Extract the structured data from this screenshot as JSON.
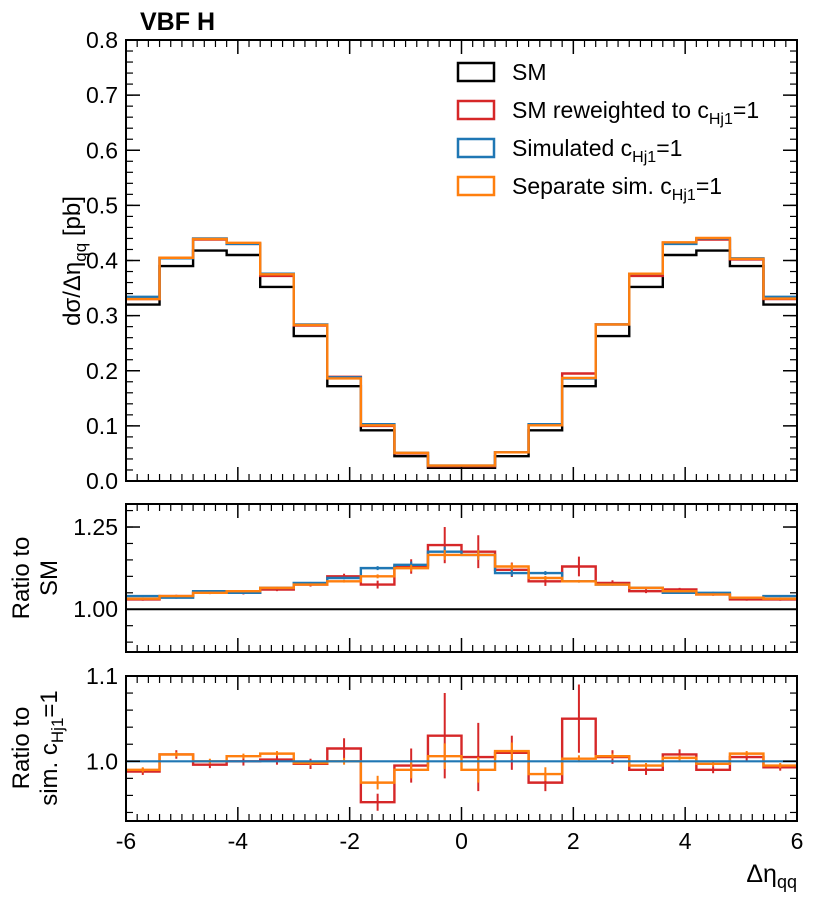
{
  "figure": {
    "title": "VBF H",
    "xlabel_main": "Δη",
    "xlabel_sub": "qq"
  },
  "colors": {
    "sm": "#000000",
    "reweighted": "#d62728",
    "simulated": "#1f77b4",
    "separate": "#ff7f0e"
  },
  "legend": {
    "placement": "top-right",
    "entries": [
      {
        "key": "sm",
        "text": "SM",
        "sub": "",
        "tail": ""
      },
      {
        "key": "reweighted",
        "text": "SM reweighted to c",
        "sub": "Hj1",
        "tail": "=1"
      },
      {
        "key": "simulated",
        "text": "Simulated c",
        "sub": "Hj1",
        "tail": "=1"
      },
      {
        "key": "separate",
        "text": "Separate sim. c",
        "sub": "Hj1",
        "tail": "=1"
      }
    ]
  },
  "panels": {
    "main": {
      "ylabel_pre": "dσ/Δη",
      "ylabel_sub": "qq",
      "ylabel_post": " [pb]",
      "yticks": [
        "0.0",
        "0.1",
        "0.2",
        "0.3",
        "0.4",
        "0.5",
        "0.6",
        "0.7",
        "0.8"
      ]
    },
    "ratio_sm": {
      "ylabel_line1": "Ratio to",
      "ylabel_line2": "SM",
      "yticks": [
        "1.00",
        "1.25"
      ]
    },
    "ratio_sim": {
      "ylabel_line1": "Ratio to",
      "ylabel_line2_pre": "sim. c",
      "ylabel_line2_sub": "Hj1",
      "ylabel_line2_post": "=1",
      "yticks": [
        "1.0",
        "1.1"
      ]
    },
    "xticks": [
      "-6",
      "-4",
      "-2",
      "0",
      "2",
      "4",
      "6"
    ]
  },
  "chart_data": [
    {
      "type": "line",
      "panel": "main",
      "title": "VBF H",
      "xlabel": "Δη_qq",
      "ylabel": "dσ/Δη_qq [pb]",
      "xlim": [
        -6,
        6
      ],
      "ylim": [
        0,
        0.8
      ],
      "bin_edges": [
        -6,
        -5.4,
        -4.8,
        -4.2,
        -3.6,
        -3.0,
        -2.4,
        -1.8,
        -1.2,
        -0.6,
        0,
        0.6,
        1.2,
        1.8,
        2.4,
        3.0,
        3.6,
        4.2,
        4.8,
        5.4,
        6
      ],
      "series": [
        {
          "name": "SM",
          "key": "sm",
          "values": [
            0.32,
            0.39,
            0.418,
            0.41,
            0.352,
            0.263,
            0.172,
            0.092,
            0.045,
            0.024,
            0.024,
            0.045,
            0.092,
            0.172,
            0.263,
            0.352,
            0.41,
            0.418,
            0.39,
            0.32
          ]
        },
        {
          "name": "SM reweighted to c_Hj1=1",
          "key": "reweighted",
          "values": [
            0.33,
            0.405,
            0.438,
            0.43,
            0.372,
            0.282,
            0.189,
            0.1,
            0.05,
            0.027,
            0.027,
            0.052,
            0.101,
            0.195,
            0.284,
            0.372,
            0.432,
            0.438,
            0.402,
            0.33
          ]
        },
        {
          "name": "Simulated c_Hj1=1",
          "key": "simulated",
          "values": [
            0.334,
            0.404,
            0.44,
            0.43,
            0.376,
            0.284,
            0.188,
            0.103,
            0.051,
            0.028,
            0.028,
            0.052,
            0.103,
            0.186,
            0.284,
            0.376,
            0.43,
            0.44,
            0.404,
            0.334
          ]
        },
        {
          "name": "Separate sim. c_Hj1=1",
          "key": "separate",
          "values": [
            0.33,
            0.405,
            0.439,
            0.432,
            0.375,
            0.283,
            0.186,
            0.101,
            0.051,
            0.028,
            0.028,
            0.052,
            0.101,
            0.187,
            0.284,
            0.376,
            0.433,
            0.441,
            0.403,
            0.331
          ]
        }
      ]
    },
    {
      "type": "line",
      "panel": "ratio_sm",
      "xlabel": "Δη_qq",
      "ylabel": "Ratio to SM",
      "xlim": [
        -6,
        6
      ],
      "ylim": [
        0.87,
        1.32
      ],
      "reference": 1.0,
      "bin_edges": [
        -6,
        -5.4,
        -4.8,
        -4.2,
        -3.6,
        -3.0,
        -2.4,
        -1.8,
        -1.2,
        -0.6,
        0,
        0.6,
        1.2,
        1.8,
        2.4,
        3.0,
        3.6,
        4.2,
        4.8,
        5.4,
        6
      ],
      "series": [
        {
          "name": "SM reweighted to c_Hj1=1",
          "key": "reweighted",
          "values": [
            1.03,
            1.04,
            1.05,
            1.05,
            1.06,
            1.075,
            1.1,
            1.075,
            1.13,
            1.195,
            1.175,
            1.12,
            1.085,
            1.13,
            1.08,
            1.055,
            1.06,
            1.045,
            1.03,
            1.03
          ],
          "errors": [
            0.004,
            0.004,
            0.004,
            0.005,
            0.005,
            0.006,
            0.008,
            0.012,
            0.022,
            0.055,
            0.05,
            0.022,
            0.014,
            0.03,
            0.008,
            0.006,
            0.005,
            0.004,
            0.004,
            0.004
          ]
        },
        {
          "name": "Simulated c_Hj1=1",
          "key": "simulated",
          "values": [
            1.04,
            1.035,
            1.055,
            1.05,
            1.065,
            1.08,
            1.095,
            1.125,
            1.135,
            1.175,
            1.165,
            1.11,
            1.11,
            1.085,
            1.075,
            1.065,
            1.05,
            1.05,
            1.035,
            1.04
          ],
          "errors": [
            0.003,
            0.003,
            0.003,
            0.003,
            0.003,
            0.003,
            0.004,
            0.006,
            0.01,
            0.015,
            0.015,
            0.01,
            0.006,
            0.004,
            0.003,
            0.003,
            0.003,
            0.003,
            0.003,
            0.003
          ]
        },
        {
          "name": "Separate sim. c_Hj1=1",
          "key": "separate",
          "values": [
            1.032,
            1.04,
            1.05,
            1.055,
            1.065,
            1.075,
            1.085,
            1.1,
            1.125,
            1.165,
            1.165,
            1.13,
            1.095,
            1.085,
            1.075,
            1.065,
            1.055,
            1.045,
            1.035,
            1.032
          ],
          "errors": [
            0.003,
            0.003,
            0.003,
            0.003,
            0.003,
            0.003,
            0.004,
            0.006,
            0.01,
            0.015,
            0.015,
            0.01,
            0.006,
            0.004,
            0.003,
            0.003,
            0.003,
            0.003,
            0.003,
            0.003
          ]
        }
      ]
    },
    {
      "type": "line",
      "panel": "ratio_sim",
      "xlabel": "Δη_qq",
      "ylabel": "Ratio to sim. c_Hj1=1",
      "xlim": [
        -6,
        6
      ],
      "ylim": [
        0.93,
        1.1
      ],
      "reference": 1.0,
      "bin_edges": [
        -6,
        -5.4,
        -4.8,
        -4.2,
        -3.6,
        -3.0,
        -2.4,
        -1.8,
        -1.2,
        -0.6,
        0,
        0.6,
        1.2,
        1.8,
        2.4,
        3.0,
        3.6,
        4.2,
        4.8,
        5.4,
        6
      ],
      "series": [
        {
          "name": "SM reweighted to c_Hj1=1",
          "key": "reweighted",
          "values": [
            0.988,
            1.008,
            0.996,
            1.0,
            1.002,
            0.997,
            1.015,
            0.952,
            0.995,
            1.03,
            1.005,
            1.01,
            0.975,
            1.05,
            1.005,
            0.99,
            1.008,
            0.99,
            1.005,
            0.993
          ],
          "errors": [
            0.004,
            0.005,
            0.004,
            0.005,
            0.006,
            0.006,
            0.012,
            0.01,
            0.02,
            0.05,
            0.04,
            0.02,
            0.01,
            0.04,
            0.008,
            0.006,
            0.006,
            0.004,
            0.005,
            0.004
          ]
        },
        {
          "name": "Separate sim. c_Hj1=1",
          "key": "separate",
          "values": [
            0.99,
            1.008,
            1.0,
            1.006,
            1.009,
            0.998,
            1.0,
            0.975,
            0.99,
            1.006,
            0.99,
            1.012,
            0.985,
            1.003,
            1.006,
            0.995,
            1.004,
            0.997,
            1.009,
            0.995
          ],
          "errors": [
            0.003,
            0.003,
            0.003,
            0.003,
            0.003,
            0.003,
            0.004,
            0.008,
            0.01,
            0.015,
            0.015,
            0.01,
            0.008,
            0.004,
            0.003,
            0.003,
            0.003,
            0.003,
            0.003,
            0.003
          ]
        },
        {
          "name": "Simulated c_Hj1=1",
          "key": "simulated",
          "values": [
            1.0,
            1.0,
            1.0,
            1.0,
            1.0,
            1.0,
            1.0,
            1.0,
            1.0,
            1.0,
            1.0,
            1.0,
            1.0,
            1.0,
            1.0,
            1.0,
            1.0,
            1.0,
            1.0,
            1.0
          ]
        }
      ]
    }
  ]
}
